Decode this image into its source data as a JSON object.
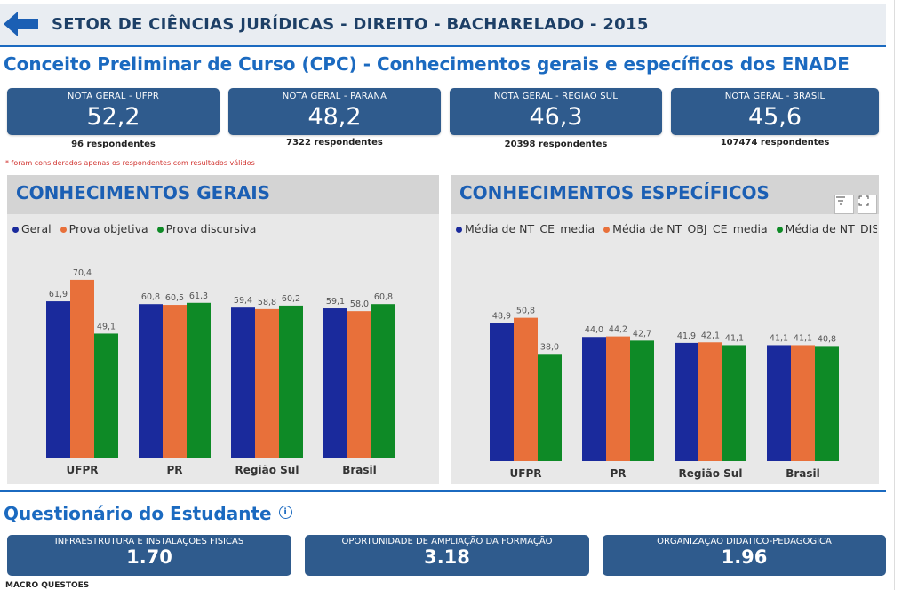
{
  "header": {
    "title": "SETOR DE CIÊNCIAS JURÍDICAS - DIREITO - BACHARELADO - 2015"
  },
  "section_title": "Conceito Preliminar de Curso (CPC) - Conhecimentos gerais e específicos dos ENADE",
  "kpis": [
    {
      "label": "NOTA GERAL - UFPR",
      "value": "52,2",
      "sub": "96 respondentes"
    },
    {
      "label": "NOTA GERAL - PARANA",
      "value": "48,2",
      "sub": "7322 respondentes"
    },
    {
      "label": "NOTA GERAL - REGIAO SUL",
      "value": "46,3",
      "sub": "20398 respondentes"
    },
    {
      "label": "NOTA GERAL - BRASIL",
      "value": "45,6",
      "sub": "107474 respondentes"
    }
  ],
  "footnote": "* foram considerados apenas os respondentes com resultados válidos",
  "colors": {
    "blue": "#1a2a9c",
    "orange": "#e8703a",
    "green": "#0e8a26",
    "accent": "#1b6ac0"
  },
  "chart_data": [
    {
      "type": "bar",
      "title": "CONHECIMENTOS GERAIS",
      "categories": [
        "UFPR",
        "PR",
        "Região Sul",
        "Brasil"
      ],
      "series": [
        {
          "name": "Geral",
          "values": [
            61.9,
            60.8,
            59.4,
            59.1
          ],
          "labels": [
            "61,9",
            "60,8",
            "59,4",
            "59,1"
          ]
        },
        {
          "name": "Prova objetiva",
          "values": [
            70.4,
            60.5,
            58.8,
            58.0
          ],
          "labels": [
            "70,4",
            "60,5",
            "58,8",
            "58,0"
          ]
        },
        {
          "name": "Prova discursiva",
          "values": [
            49.1,
            61.3,
            60.2,
            60.8
          ],
          "labels": [
            "49,1",
            "61,3",
            "60,2",
            "60,8"
          ]
        }
      ],
      "ylim": [
        0,
        95
      ],
      "legend": "top-left",
      "grid": false
    },
    {
      "type": "bar",
      "title": "CONHECIMENTOS ESPECÍFICOS",
      "categories": [
        "UFPR",
        "PR",
        "Região Sul",
        "Brasil"
      ],
      "series": [
        {
          "name": "Média de NT_CE_media",
          "values": [
            48.9,
            44.0,
            41.9,
            41.1
          ],
          "labels": [
            "48,9",
            "44,0",
            "41,9",
            "41,1"
          ]
        },
        {
          "name": "Média de NT_OBJ_CE_media",
          "values": [
            50.8,
            44.2,
            42.1,
            41.1
          ],
          "labels": [
            "50,8",
            "44,2",
            "42,1",
            "41,1"
          ]
        },
        {
          "name": "Média de NT_DIS_C...",
          "values": [
            38.0,
            42.7,
            41.1,
            40.8
          ],
          "labels": [
            "38,0",
            "42,7",
            "41,1",
            "40,8"
          ]
        }
      ],
      "ylim": [
        0,
        85
      ],
      "legend": "top-left",
      "grid": false
    }
  ],
  "section2_title": "Questionário do Estudante",
  "questionnaire": [
    {
      "label": "INFRAESTRUTURA E INSTALAÇOES FISICAS",
      "value": "1.70"
    },
    {
      "label": "OPORTUNIDADE DE AMPLIAÇÃO DA FORMAÇÃO",
      "value": "3.18"
    },
    {
      "label": "ORGANIZAÇAO DIDATICO-PEDAGOGICA",
      "value": "1.96"
    }
  ],
  "macro_label": "MACRO QUESTOES"
}
